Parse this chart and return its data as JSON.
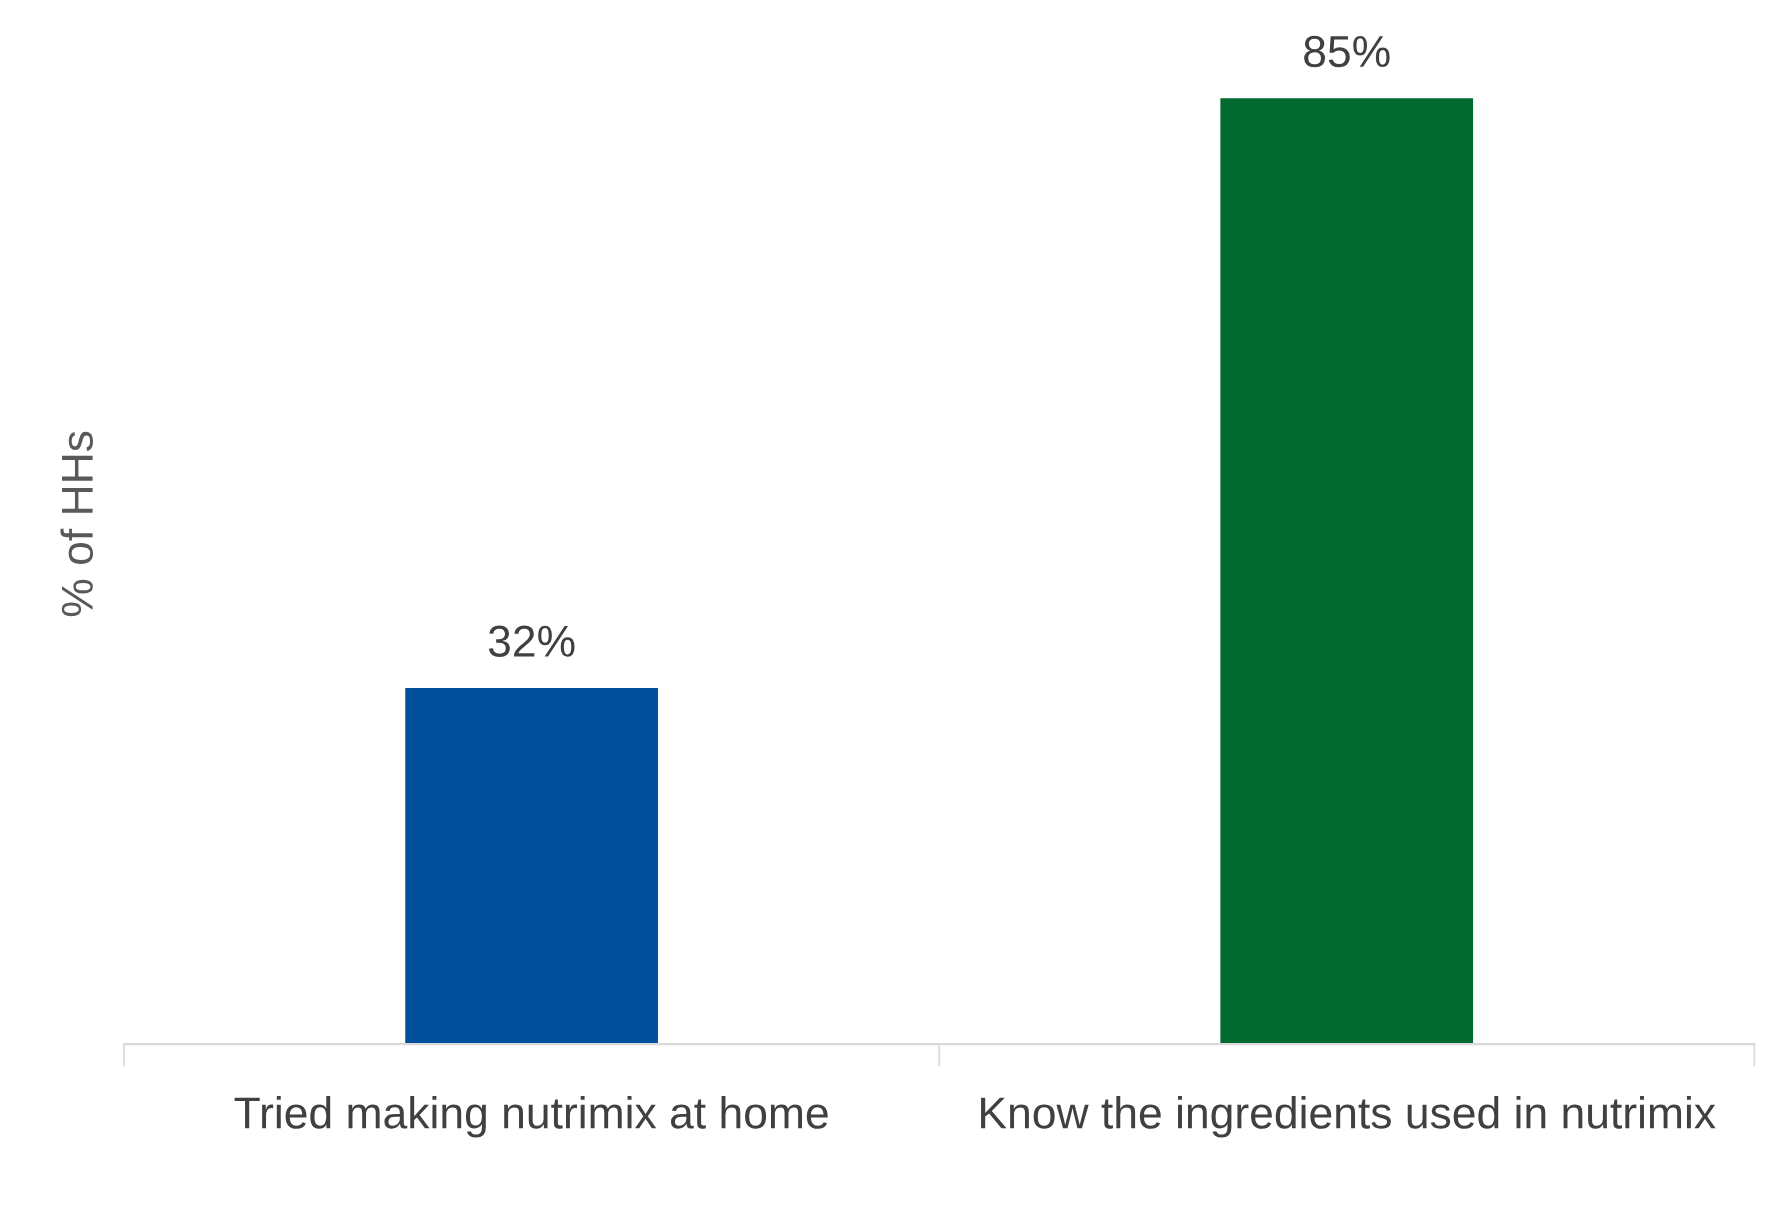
{
  "chart_data": {
    "type": "bar",
    "ylabel": "% of HHs",
    "categories": [
      "Tried making nutrimix at home",
      "Know the ingredients used in nutrimix"
    ],
    "values": [
      32,
      85
    ],
    "colors": [
      "#004f9d",
      "#006a31"
    ],
    "value_labels": [
      "32%",
      "85%"
    ],
    "grid": false,
    "legend": false
  }
}
